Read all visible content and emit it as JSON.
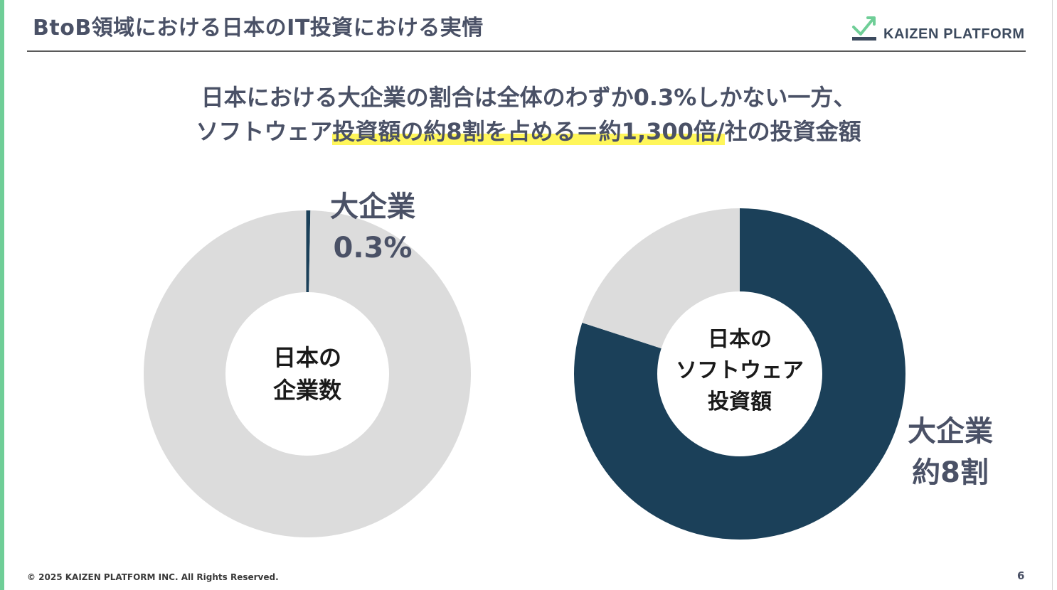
{
  "slide": {
    "title": "BtoB領域における日本のIT投資における実情",
    "logo_text": "KAIZEN PLATFORM",
    "headline_line1": "日本における大企業の割合は全体のわずか0.3%しかない一方、",
    "headline_line2_pre": "ソフトウェア",
    "headline_line2_highlight": "投資額の約8割を占める＝約1,300倍/",
    "headline_line2_post": "社の投資金額",
    "footer": "© 2025 KAIZEN PLATFORM INC. All Rights Reserved.",
    "page_number": "6"
  },
  "colors": {
    "accent_green": "#6fce97",
    "navy": "#1b4059",
    "gray": "#dcdcdc",
    "highlight": "#fff65a",
    "text": "#4a5166"
  },
  "chart_data": [
    {
      "type": "pie",
      "center_label_line1": "日本の",
      "center_label_line2": "企業数",
      "slices": [
        {
          "label_line1": "大企業",
          "label_line2": "0.3%",
          "value": 0.3
        },
        {
          "value": 99.7
        }
      ]
    },
    {
      "type": "pie",
      "center_label_line1": "日本の",
      "center_label_line2": "ソフトウェア",
      "center_label_line3": "投資額",
      "slices": [
        {
          "label_line1": "大企業",
          "label_line2": "約8割",
          "value": 80
        },
        {
          "value": 20
        }
      ]
    }
  ]
}
